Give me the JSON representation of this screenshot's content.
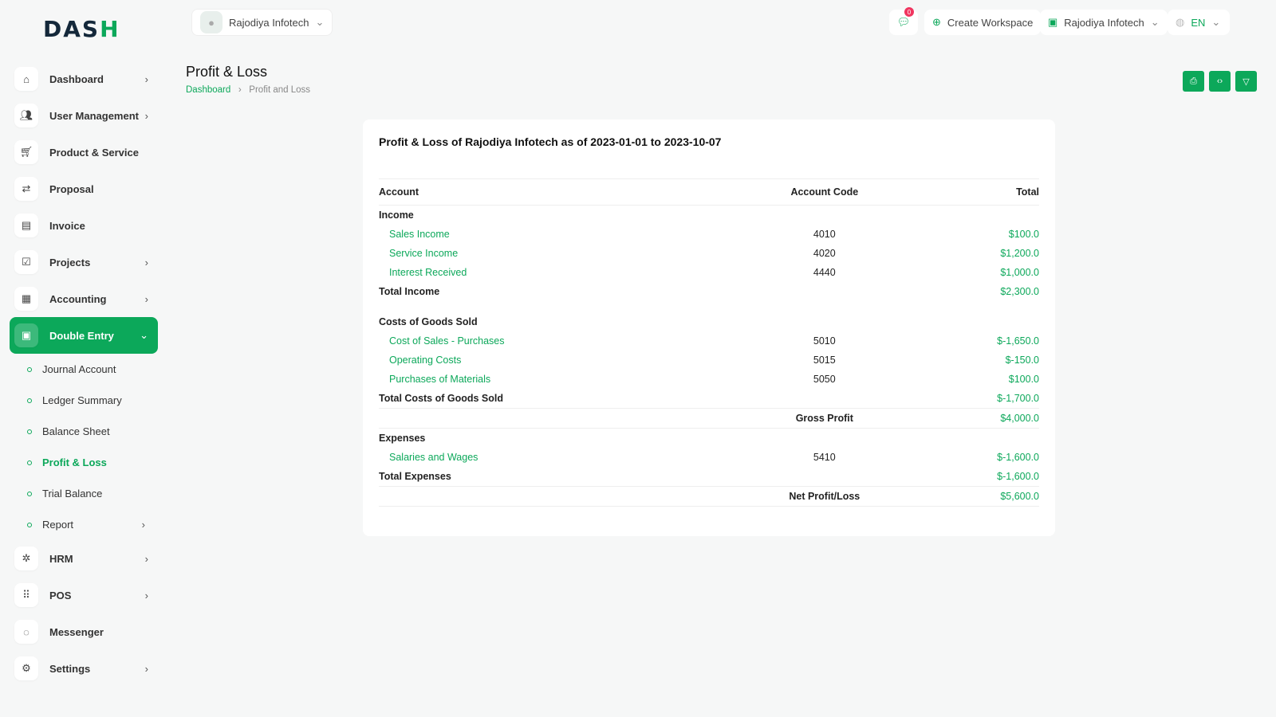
{
  "logo": "DASH",
  "header": {
    "company": "Rajodiya Infotech",
    "notifications": "0",
    "create_workspace": "Create Workspace",
    "workspace": "Rajodiya Infotech",
    "language": "EN"
  },
  "sidebar": {
    "items": [
      {
        "label": "Dashboard",
        "icon": "home-icon",
        "chev": true
      },
      {
        "label": "User Management",
        "icon": "users-icon",
        "chev": true
      },
      {
        "label": "Product & Service",
        "icon": "cart-icon",
        "chev": false
      },
      {
        "label": "Proposal",
        "icon": "proposal-icon",
        "chev": false
      },
      {
        "label": "Invoice",
        "icon": "invoice-icon",
        "chev": false
      },
      {
        "label": "Projects",
        "icon": "projects-icon",
        "chev": true
      },
      {
        "label": "Accounting",
        "icon": "accounting-icon",
        "chev": true
      },
      {
        "label": "Double Entry",
        "icon": "double-entry-icon",
        "chev": true,
        "active": true,
        "sub": [
          {
            "label": "Journal Account"
          },
          {
            "label": "Ledger Summary"
          },
          {
            "label": "Balance Sheet"
          },
          {
            "label": "Profit & Loss",
            "active": true
          },
          {
            "label": "Trial Balance"
          },
          {
            "label": "Report",
            "chev": true
          }
        ]
      },
      {
        "label": "HRM",
        "icon": "hrm-icon",
        "chev": true
      },
      {
        "label": "POS",
        "icon": "pos-icon",
        "chev": true
      },
      {
        "label": "Messenger",
        "icon": "messenger-icon",
        "chev": false
      },
      {
        "label": "Settings",
        "icon": "settings-icon",
        "chev": true
      }
    ]
  },
  "page": {
    "title": "Profit & Loss",
    "breadcrumb": [
      "Dashboard",
      "Profit and Loss"
    ]
  },
  "report": {
    "title": "Profit & Loss of Rajodiya Infotech as of 2023-01-01 to 2023-10-07",
    "columns": [
      "Account",
      "Account Code",
      "Total"
    ],
    "rows": [
      {
        "type": "head",
        "name": "Income"
      },
      {
        "type": "acct",
        "name": "Sales Income",
        "code": "4010",
        "total": "$100.0"
      },
      {
        "type": "acct",
        "name": "Service Income",
        "code": "4020",
        "total": "$1,200.0"
      },
      {
        "type": "acct",
        "name": "Interest Received",
        "code": "4440",
        "total": "$1,000.0"
      },
      {
        "type": "tot",
        "name": "Total Income",
        "total": "$2,300.0"
      },
      {
        "type": "gap"
      },
      {
        "type": "head",
        "name": "Costs of Goods Sold"
      },
      {
        "type": "acct",
        "name": "Cost of Sales - Purchases",
        "code": "5010",
        "total": "$-1,650.0"
      },
      {
        "type": "acct",
        "name": "Operating Costs",
        "code": "5015",
        "total": "$-150.0"
      },
      {
        "type": "acct",
        "name": "Purchases of Materials",
        "code": "5050",
        "total": "$100.0"
      },
      {
        "type": "tot",
        "name": "Total Costs of Goods Sold",
        "total": "$-1,700.0"
      },
      {
        "type": "sum",
        "name": "Gross Profit",
        "total": "$4,000.0"
      },
      {
        "type": "head",
        "name": "Expenses"
      },
      {
        "type": "acct",
        "name": "Salaries and Wages",
        "code": "5410",
        "total": "$-1,600.0"
      },
      {
        "type": "tot",
        "name": "Total Expenses",
        "total": "$-1,600.0"
      },
      {
        "type": "sum",
        "name": "Net Profit/Loss",
        "total": "$5,600.0"
      }
    ]
  },
  "colors": {
    "accent": "#0ca85a",
    "badge": "#f0355f"
  }
}
